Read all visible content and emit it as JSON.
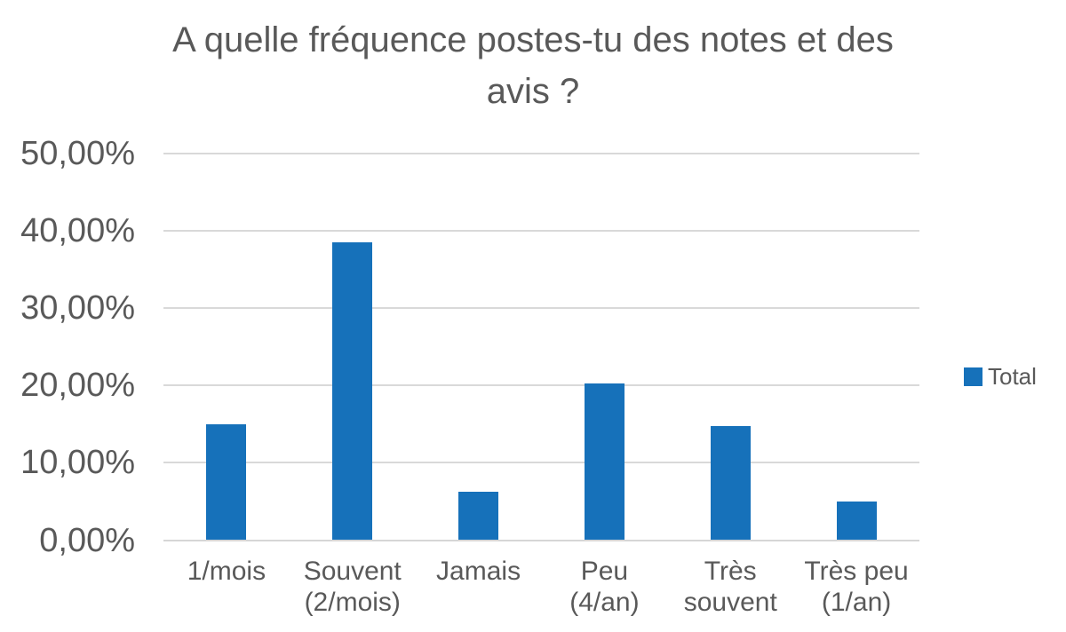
{
  "chart_data": {
    "type": "bar",
    "title": "A quelle fréquence postes-tu des notes et des avis ?",
    "title_lines": [
      "A quelle fréquence postes-tu des notes et des",
      "avis ?"
    ],
    "categories": [
      "1/mois",
      "Souvent (2/mois)",
      "Jamais",
      "Peu (4/an)",
      "Très souvent",
      "Très peu (1/an)"
    ],
    "category_label_lines": [
      [
        "1/mois"
      ],
      [
        "Souvent",
        "(2/mois)"
      ],
      [
        "Jamais"
      ],
      [
        "Peu",
        "(4/an)"
      ],
      [
        "Très",
        "souvent"
      ],
      [
        "Très peu",
        "(1/an)"
      ]
    ],
    "series": [
      {
        "name": "Total",
        "values": [
          15.0,
          38.5,
          6.3,
          20.3,
          14.8,
          5.0
        ]
      }
    ],
    "xlabel": "",
    "ylabel": "",
    "ylim": [
      0,
      50
    ],
    "ytick_step": 10,
    "ytick_labels": [
      "0,00%",
      "10,00%",
      "20,00%",
      "30,00%",
      "40,00%",
      "50,00%"
    ],
    "grid": true,
    "legend_position": "right",
    "colors": {
      "bar": "#1671BA",
      "text": "#595959",
      "gridline": "#D9D9D9",
      "axis": "#D6D6D6"
    }
  }
}
